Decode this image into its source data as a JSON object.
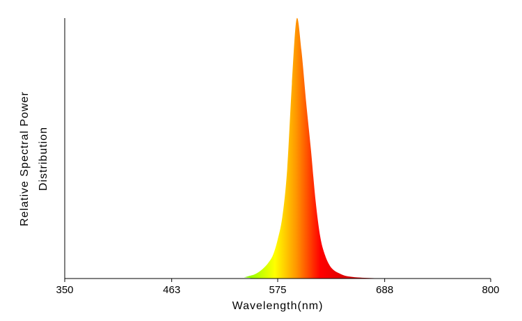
{
  "chart_data": {
    "type": "area",
    "title": "",
    "xlabel": "Wavelength(nm)",
    "ylabel_lines": [
      "Relative Spectral Power",
      "Distribution"
    ],
    "xlim": [
      350,
      800
    ],
    "ylim": [
      0,
      1
    ],
    "x_ticks": [
      "350",
      "463",
      "575",
      "688",
      "800"
    ],
    "y_ticks": [],
    "grid": false,
    "legend": "none",
    "x": [
      350,
      530,
      540,
      545,
      550,
      555,
      560,
      565,
      570,
      575,
      580,
      585,
      590,
      595,
      600,
      605,
      610,
      615,
      620,
      625,
      630,
      635,
      640,
      645,
      650,
      660,
      680,
      700,
      800
    ],
    "y": [
      0,
      0,
      0.005,
      0.01,
      0.015,
      0.025,
      0.04,
      0.06,
      0.09,
      0.15,
      0.24,
      0.42,
      0.75,
      1.0,
      0.88,
      0.68,
      0.5,
      0.3,
      0.16,
      0.09,
      0.05,
      0.03,
      0.02,
      0.012,
      0.008,
      0.004,
      0.001,
      0,
      0
    ],
    "fill_gradient": [
      {
        "wavelength": 540,
        "color": "#7fff00"
      },
      {
        "wavelength": 572,
        "color": "#ffff00"
      },
      {
        "wavelength": 595,
        "color": "#ff9400"
      },
      {
        "wavelength": 620,
        "color": "#ff0000"
      },
      {
        "wavelength": 660,
        "color": "#cc0000"
      }
    ]
  }
}
